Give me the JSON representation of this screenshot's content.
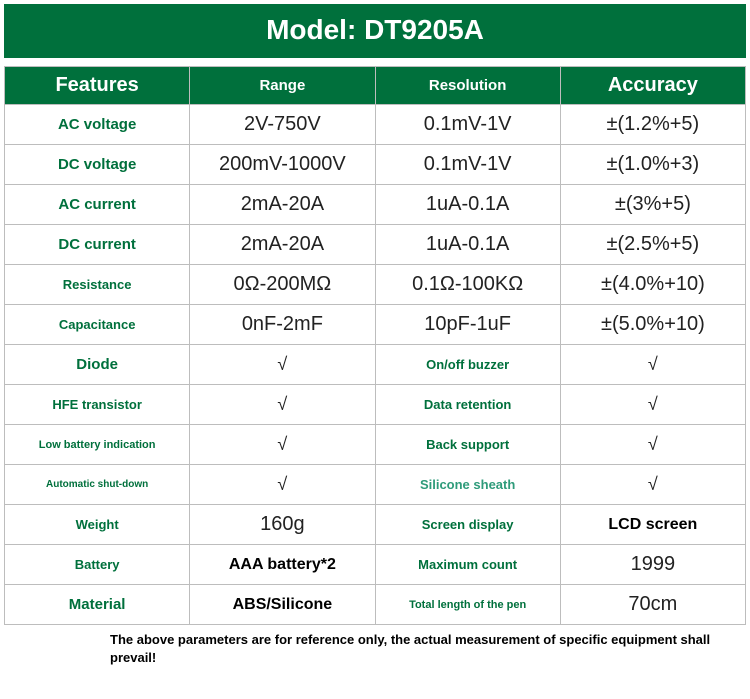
{
  "title": "Model: DT9205A",
  "headers": {
    "features": "Features",
    "range": "Range",
    "resolution": "Resolution",
    "accuracy": "Accuracy"
  },
  "spec_rows": [
    {
      "label": "AC voltage",
      "label_cls": "feat-15",
      "range": "2V-750V",
      "resolution": "0.1mV-1V",
      "accuracy": "±(1.2%+5)"
    },
    {
      "label": "DC voltage",
      "label_cls": "feat-15",
      "range": "200mV-1000V",
      "resolution": "0.1mV-1V",
      "accuracy": "±(1.0%+3)"
    },
    {
      "label": "AC current",
      "label_cls": "feat-15",
      "range": "2mA-20A",
      "resolution": "1uA-0.1A",
      "accuracy": "±(3%+5)"
    },
    {
      "label": "DC current",
      "label_cls": "feat-15",
      "range": "2mA-20A",
      "resolution": "1uA-0.1A",
      "accuracy": "±(2.5%+5)"
    },
    {
      "label": "Resistance",
      "label_cls": "feat-13",
      "range": "0Ω-200MΩ",
      "resolution": "0.1Ω-100KΩ",
      "accuracy": "±(4.0%+10)"
    },
    {
      "label": "Capacitance",
      "label_cls": "feat-13",
      "range": "0nF-2mF",
      "resolution": "10pF-1uF",
      "accuracy": "±(5.0%+10)"
    }
  ],
  "feature_rows": [
    {
      "l_label": "Diode",
      "l_cls": "feat-15",
      "l_val": "√",
      "r_label": "On/off buzzer",
      "r_label_cls": "green-label green-13",
      "r_val": "√",
      "r_val_cls": "check"
    },
    {
      "l_label": "HFE transistor",
      "l_cls": "feat-13",
      "l_val": "√",
      "r_label": "Data retention",
      "r_label_cls": "green-label green-13",
      "r_val": "√",
      "r_val_cls": "check"
    },
    {
      "l_label": "Low battery indication",
      "l_cls": "feat-11",
      "l_val": "√",
      "r_label": "Back support",
      "r_label_cls": "green-label green-13",
      "r_val": "√",
      "r_val_cls": "check"
    },
    {
      "l_label": "Automatic shut-down",
      "l_cls": "feat-10",
      "l_val": "√",
      "r_label": "Silicone sheath",
      "r_label_cls": "teal-label",
      "r_val": "√",
      "r_val_cls": "check"
    },
    {
      "l_label": "Weight",
      "l_cls": "feat-13",
      "l_val": "160g",
      "r_label": "Screen display",
      "r_label_cls": "green-label green-13",
      "r_val": "LCD screen",
      "r_val_cls": "val-black-bold"
    },
    {
      "l_label": "Battery",
      "l_cls": "feat-13",
      "l_val": "AAA battery*2",
      "l_val_cls": "val-black-bold",
      "r_label": "Maximum count",
      "r_label_cls": "green-label green-13",
      "r_val": "1999",
      "r_val_cls": "val-black"
    },
    {
      "l_label": "Material",
      "l_cls": "feat-15",
      "l_val": "ABS/Silicone",
      "l_val_cls": "val-black-bold",
      "r_label": "Total length of the pen",
      "r_label_cls": "green-label green-11",
      "r_val": "70cm",
      "r_val_cls": "val-black"
    }
  ],
  "footnote": "The above parameters are for reference only, the actual measurement of specific equipment shall prevail!"
}
